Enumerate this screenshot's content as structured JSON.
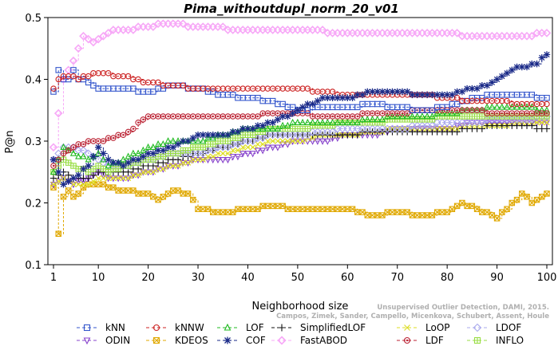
{
  "chart_data": {
    "type": "line",
    "title": "Pima_withoutdupl_norm_20_v01",
    "xlabel": "Neighborhood size",
    "ylabel": "P@n",
    "xlim": [
      1,
      100
    ],
    "ylim": [
      0.1,
      0.5
    ],
    "xticks": [
      1,
      10,
      20,
      30,
      40,
      50,
      60,
      70,
      80,
      90,
      100
    ],
    "yticks": [
      0.1,
      0.2,
      0.3,
      0.4,
      0.5
    ],
    "grid": false,
    "legend_position": "bottom",
    "series": [
      {
        "name": "kNN",
        "color": "#3355cc",
        "marker": "square",
        "dash": "6,4",
        "points": [
          [
            1,
            0.38
          ],
          [
            2,
            0.415
          ],
          [
            3,
            0.4
          ],
          [
            4,
            0.4
          ],
          [
            5,
            0.415
          ],
          [
            6,
            0.4
          ],
          [
            8,
            0.395
          ],
          [
            10,
            0.385
          ],
          [
            15,
            0.385
          ],
          [
            20,
            0.38
          ],
          [
            25,
            0.39
          ],
          [
            30,
            0.385
          ],
          [
            35,
            0.375
          ],
          [
            40,
            0.37
          ],
          [
            45,
            0.365
          ],
          [
            50,
            0.35
          ],
          [
            55,
            0.355
          ],
          [
            60,
            0.355
          ],
          [
            65,
            0.36
          ],
          [
            70,
            0.355
          ],
          [
            75,
            0.35
          ],
          [
            80,
            0.355
          ],
          [
            85,
            0.37
          ],
          [
            90,
            0.375
          ],
          [
            95,
            0.375
          ],
          [
            100,
            0.37
          ]
        ]
      },
      {
        "name": "kNNW",
        "color": "#cc2222",
        "marker": "circle",
        "dash": "6,4",
        "points": [
          [
            1,
            0.385
          ],
          [
            2,
            0.4
          ],
          [
            4,
            0.405
          ],
          [
            6,
            0.4
          ],
          [
            8,
            0.405
          ],
          [
            10,
            0.41
          ],
          [
            15,
            0.405
          ],
          [
            20,
            0.395
          ],
          [
            25,
            0.39
          ],
          [
            30,
            0.385
          ],
          [
            35,
            0.385
          ],
          [
            40,
            0.385
          ],
          [
            45,
            0.385
          ],
          [
            50,
            0.385
          ],
          [
            55,
            0.38
          ],
          [
            60,
            0.375
          ],
          [
            65,
            0.375
          ],
          [
            70,
            0.375
          ],
          [
            75,
            0.375
          ],
          [
            80,
            0.37
          ],
          [
            85,
            0.365
          ],
          [
            90,
            0.365
          ],
          [
            95,
            0.36
          ],
          [
            100,
            0.36
          ]
        ]
      },
      {
        "name": "LOF",
        "color": "#22bb22",
        "marker": "triangle",
        "dash": "6,4",
        "points": [
          [
            1,
            0.25
          ],
          [
            3,
            0.29
          ],
          [
            5,
            0.28
          ],
          [
            8,
            0.27
          ],
          [
            10,
            0.28
          ],
          [
            12,
            0.26
          ],
          [
            15,
            0.27
          ],
          [
            20,
            0.29
          ],
          [
            25,
            0.3
          ],
          [
            30,
            0.3
          ],
          [
            35,
            0.31
          ],
          [
            40,
            0.32
          ],
          [
            45,
            0.32
          ],
          [
            50,
            0.33
          ],
          [
            55,
            0.33
          ],
          [
            60,
            0.33
          ],
          [
            65,
            0.335
          ],
          [
            70,
            0.34
          ],
          [
            75,
            0.34
          ],
          [
            80,
            0.345
          ],
          [
            85,
            0.35
          ],
          [
            90,
            0.355
          ],
          [
            95,
            0.355
          ],
          [
            100,
            0.35
          ]
        ]
      },
      {
        "name": "SimplifiedLOF",
        "color": "#111111",
        "marker": "plus",
        "dash": "6,4",
        "points": [
          [
            1,
            0.24
          ],
          [
            3,
            0.25
          ],
          [
            5,
            0.24
          ],
          [
            8,
            0.24
          ],
          [
            10,
            0.25
          ],
          [
            12,
            0.25
          ],
          [
            15,
            0.25
          ],
          [
            20,
            0.26
          ],
          [
            25,
            0.27
          ],
          [
            30,
            0.28
          ],
          [
            35,
            0.29
          ],
          [
            40,
            0.3
          ],
          [
            45,
            0.31
          ],
          [
            50,
            0.31
          ],
          [
            55,
            0.31
          ],
          [
            60,
            0.31
          ],
          [
            65,
            0.315
          ],
          [
            70,
            0.315
          ],
          [
            75,
            0.315
          ],
          [
            80,
            0.315
          ],
          [
            85,
            0.32
          ],
          [
            90,
            0.325
          ],
          [
            95,
            0.325
          ],
          [
            100,
            0.32
          ]
        ]
      },
      {
        "name": "LoOP",
        "color": "#dddd22",
        "marker": "x",
        "dash": "6,4",
        "points": [
          [
            1,
            0.23
          ],
          [
            3,
            0.24
          ],
          [
            5,
            0.23
          ],
          [
            8,
            0.23
          ],
          [
            10,
            0.24
          ],
          [
            12,
            0.24
          ],
          [
            15,
            0.24
          ],
          [
            20,
            0.25
          ],
          [
            25,
            0.26
          ],
          [
            30,
            0.27
          ],
          [
            35,
            0.28
          ],
          [
            40,
            0.29
          ],
          [
            45,
            0.3
          ],
          [
            50,
            0.3
          ],
          [
            55,
            0.31
          ],
          [
            60,
            0.31
          ],
          [
            65,
            0.315
          ],
          [
            70,
            0.32
          ],
          [
            75,
            0.32
          ],
          [
            80,
            0.32
          ],
          [
            85,
            0.325
          ],
          [
            90,
            0.325
          ],
          [
            95,
            0.33
          ],
          [
            100,
            0.33
          ]
        ]
      },
      {
        "name": "LDOF",
        "color": "#aaaaee",
        "marker": "diamond",
        "dash": "6,4",
        "points": [
          [
            1,
            0.27
          ],
          [
            3,
            0.29
          ],
          [
            5,
            0.29
          ],
          [
            8,
            0.28
          ],
          [
            10,
            0.27
          ],
          [
            12,
            0.26
          ],
          [
            15,
            0.26
          ],
          [
            20,
            0.27
          ],
          [
            25,
            0.28
          ],
          [
            30,
            0.28
          ],
          [
            35,
            0.29
          ],
          [
            40,
            0.3
          ],
          [
            45,
            0.31
          ],
          [
            50,
            0.31
          ],
          [
            55,
            0.315
          ],
          [
            60,
            0.32
          ],
          [
            65,
            0.32
          ],
          [
            70,
            0.32
          ],
          [
            75,
            0.325
          ],
          [
            80,
            0.33
          ],
          [
            85,
            0.33
          ],
          [
            90,
            0.335
          ],
          [
            95,
            0.335
          ],
          [
            100,
            0.34
          ]
        ]
      },
      {
        "name": "ODIN",
        "color": "#8844cc",
        "marker": "triangle-down",
        "dash": "6,4",
        "points": [
          [
            1,
            0.23
          ],
          [
            3,
            0.24
          ],
          [
            5,
            0.23
          ],
          [
            8,
            0.24
          ],
          [
            10,
            0.25
          ],
          [
            12,
            0.24
          ],
          [
            15,
            0.24
          ],
          [
            20,
            0.25
          ],
          [
            25,
            0.26
          ],
          [
            30,
            0.27
          ],
          [
            35,
            0.27
          ],
          [
            40,
            0.28
          ],
          [
            45,
            0.29
          ],
          [
            50,
            0.3
          ],
          [
            55,
            0.3
          ],
          [
            60,
            0.31
          ],
          [
            65,
            0.31
          ],
          [
            70,
            0.32
          ],
          [
            75,
            0.32
          ],
          [
            80,
            0.32
          ],
          [
            85,
            0.33
          ],
          [
            90,
            0.33
          ],
          [
            95,
            0.33
          ],
          [
            100,
            0.33
          ]
        ]
      },
      {
        "name": "KDEOS",
        "color": "#e0a800",
        "marker": "square-x",
        "dash": "6,4",
        "points": [
          [
            1,
            0.225
          ],
          [
            2,
            0.148
          ],
          [
            3,
            0.21
          ],
          [
            4,
            0.22
          ],
          [
            5,
            0.21
          ],
          [
            8,
            0.23
          ],
          [
            10,
            0.23
          ],
          [
            15,
            0.22
          ],
          [
            20,
            0.215
          ],
          [
            22,
            0.205
          ],
          [
            25,
            0.22
          ],
          [
            28,
            0.215
          ],
          [
            30,
            0.19
          ],
          [
            35,
            0.185
          ],
          [
            40,
            0.19
          ],
          [
            45,
            0.195
          ],
          [
            50,
            0.19
          ],
          [
            55,
            0.19
          ],
          [
            60,
            0.19
          ],
          [
            65,
            0.18
          ],
          [
            70,
            0.185
          ],
          [
            75,
            0.18
          ],
          [
            80,
            0.185
          ],
          [
            83,
            0.2
          ],
          [
            86,
            0.19
          ],
          [
            90,
            0.175
          ],
          [
            92,
            0.19
          ],
          [
            95,
            0.215
          ],
          [
            97,
            0.2
          ],
          [
            100,
            0.215
          ]
        ]
      },
      {
        "name": "COF",
        "color": "#1a2a88",
        "marker": "asterisk",
        "dash": "6,4",
        "points": [
          [
            1,
            0.27
          ],
          [
            3,
            0.23
          ],
          [
            5,
            0.24
          ],
          [
            8,
            0.26
          ],
          [
            10,
            0.29
          ],
          [
            12,
            0.27
          ],
          [
            15,
            0.26
          ],
          [
            20,
            0.28
          ],
          [
            25,
            0.29
          ],
          [
            30,
            0.31
          ],
          [
            35,
            0.31
          ],
          [
            40,
            0.32
          ],
          [
            45,
            0.33
          ],
          [
            50,
            0.35
          ],
          [
            55,
            0.37
          ],
          [
            60,
            0.37
          ],
          [
            65,
            0.38
          ],
          [
            70,
            0.38
          ],
          [
            75,
            0.375
          ],
          [
            80,
            0.375
          ],
          [
            85,
            0.385
          ],
          [
            88,
            0.39
          ],
          [
            90,
            0.4
          ],
          [
            93,
            0.415
          ],
          [
            95,
            0.42
          ],
          [
            98,
            0.425
          ],
          [
            100,
            0.44
          ]
        ]
      },
      {
        "name": "FastABOD",
        "color": "#f7a8f7",
        "marker": "diamond-open",
        "dash": "6,4",
        "points": [
          [
            1,
            0.29
          ],
          [
            3,
            0.4
          ],
          [
            5,
            0.43
          ],
          [
            7,
            0.47
          ],
          [
            9,
            0.46
          ],
          [
            11,
            0.47
          ],
          [
            13,
            0.48
          ],
          [
            16,
            0.48
          ],
          [
            20,
            0.485
          ],
          [
            24,
            0.49
          ],
          [
            30,
            0.485
          ],
          [
            40,
            0.48
          ],
          [
            50,
            0.48
          ],
          [
            60,
            0.475
          ],
          [
            70,
            0.475
          ],
          [
            80,
            0.475
          ],
          [
            85,
            0.47
          ],
          [
            90,
            0.47
          ],
          [
            95,
            0.47
          ],
          [
            100,
            0.475
          ]
        ]
      },
      {
        "name": "LDF",
        "color": "#bb2233",
        "marker": "dot-circle",
        "dash": "6,4",
        "points": [
          [
            1,
            0.26
          ],
          [
            3,
            0.28
          ],
          [
            5,
            0.29
          ],
          [
            8,
            0.3
          ],
          [
            10,
            0.3
          ],
          [
            15,
            0.31
          ],
          [
            20,
            0.34
          ],
          [
            25,
            0.34
          ],
          [
            30,
            0.34
          ],
          [
            35,
            0.34
          ],
          [
            40,
            0.34
          ],
          [
            45,
            0.345
          ],
          [
            50,
            0.345
          ],
          [
            55,
            0.34
          ],
          [
            60,
            0.34
          ],
          [
            65,
            0.345
          ],
          [
            70,
            0.345
          ],
          [
            75,
            0.35
          ],
          [
            80,
            0.35
          ],
          [
            85,
            0.35
          ],
          [
            90,
            0.345
          ],
          [
            95,
            0.345
          ],
          [
            100,
            0.345
          ]
        ]
      },
      {
        "name": "INFLO",
        "color": "#99dd44",
        "marker": "square-plus",
        "dash": "6,4",
        "points": [
          [
            1,
            0.25
          ],
          [
            3,
            0.27
          ],
          [
            5,
            0.26
          ],
          [
            8,
            0.25
          ],
          [
            10,
            0.26
          ],
          [
            12,
            0.25
          ],
          [
            15,
            0.26
          ],
          [
            20,
            0.27
          ],
          [
            25,
            0.28
          ],
          [
            30,
            0.29
          ],
          [
            35,
            0.3
          ],
          [
            40,
            0.31
          ],
          [
            45,
            0.32
          ],
          [
            50,
            0.32
          ],
          [
            55,
            0.325
          ],
          [
            60,
            0.33
          ],
          [
            65,
            0.33
          ],
          [
            70,
            0.335
          ],
          [
            75,
            0.335
          ],
          [
            80,
            0.34
          ],
          [
            85,
            0.34
          ],
          [
            90,
            0.34
          ],
          [
            95,
            0.34
          ],
          [
            100,
            0.34
          ]
        ]
      }
    ]
  },
  "credit_lines": [
    "Campos, Zimek, Sander, Campello, Micenkova, Schubert, Assent, Houle",
    "Unsupervised Outlier Detection, DAMI, 2015."
  ]
}
